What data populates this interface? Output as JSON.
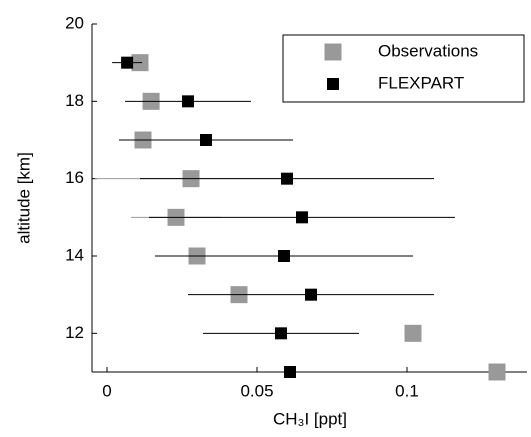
{
  "chart_data": {
    "type": "scatter",
    "xlabel": "CH₃I [ppt]",
    "ylabel": "altitude [km]",
    "xlim": [
      -0.005,
      0.14
    ],
    "ylim": [
      11,
      20
    ],
    "xticks": [
      0,
      0.05,
      0.1
    ],
    "yticks": [
      12,
      14,
      16,
      18,
      20
    ],
    "legend": "upper right",
    "series": [
      {
        "name": "Observations",
        "color": "#999999",
        "x": [
          0.011,
          0.0147,
          0.012,
          0.028,
          0.023,
          0.03,
          0.044,
          0.102,
          0.13
        ],
        "y": [
          19,
          18,
          17,
          16,
          15,
          14,
          13,
          12,
          11
        ],
        "xerr": [
          null,
          null,
          0.0065,
          0.032,
          0.015,
          0.012,
          null,
          null,
          null
        ]
      },
      {
        "name": "FLEXPART",
        "color": "#000000",
        "x": [
          0.0067,
          0.027,
          0.033,
          0.06,
          0.065,
          0.059,
          0.068,
          0.058,
          0.061
        ],
        "y": [
          19,
          18,
          17,
          16,
          15,
          14,
          13,
          12,
          11
        ],
        "xerr": [
          0.005,
          0.021,
          0.029,
          0.049,
          0.051,
          0.043,
          0.041,
          0.026,
          null
        ]
      }
    ]
  }
}
